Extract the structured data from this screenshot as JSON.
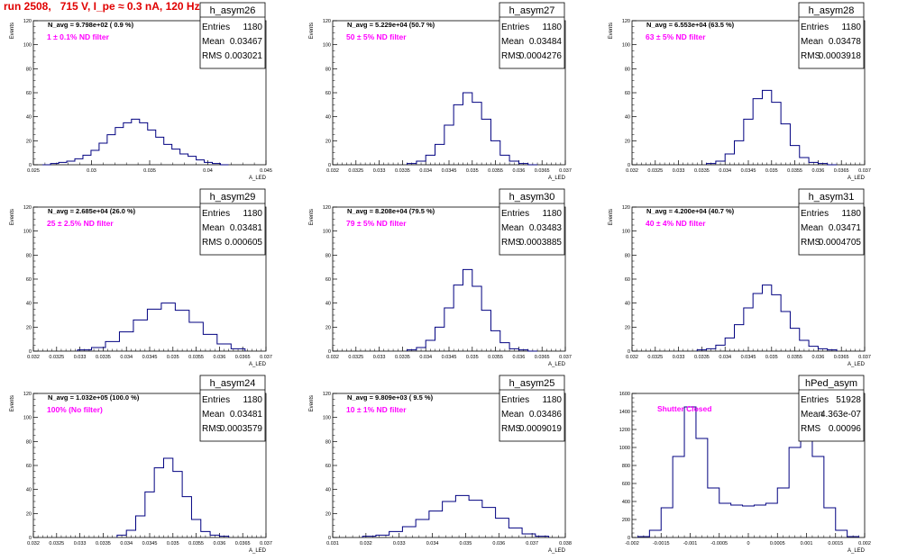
{
  "header": {
    "title": "run 2508,   715 V, I_pe ≈ 0.3 nA, 120 Hz"
  },
  "stat_labels": {
    "entries": "Entries",
    "mean": "Mean",
    "rms": "RMS"
  },
  "chart_data": [
    {
      "type": "bar",
      "name": "h_asym26",
      "xlabel": "A_LED",
      "ylabel": "Events",
      "navg": "N_avg = 9.798e+02 ( 0.9 %)",
      "filter": "1 ± 0.1% ND filter",
      "entries": "1180",
      "mean": "0.03467",
      "rms": "0.003021",
      "xlim": [
        0.024,
        0.047
      ],
      "ylim": [
        0,
        120
      ],
      "xticks": [
        "0.025",
        "0.03",
        "0.035",
        "0.04",
        "0.045"
      ],
      "yticks": [
        "0",
        "20",
        "40",
        "60",
        "80",
        "100",
        "120"
      ],
      "x": [
        0.0253,
        0.0261,
        0.0269,
        0.0277,
        0.0285,
        0.0293,
        0.0301,
        0.0309,
        0.0317,
        0.0325,
        0.0333,
        0.0341,
        0.0349,
        0.0357,
        0.0365,
        0.0373,
        0.0381,
        0.0389,
        0.0397,
        0.0405,
        0.0413,
        0.0421,
        0.0429
      ],
      "values": [
        0,
        1,
        2,
        3,
        5,
        8,
        12,
        18,
        25,
        31,
        35,
        38,
        35,
        29,
        23,
        17,
        13,
        9,
        7,
        4,
        2,
        1,
        0
      ]
    },
    {
      "type": "bar",
      "name": "h_asym27",
      "xlabel": "A_LED",
      "ylabel": "Events",
      "navg": "N_avg = 5.229e+04 (50.7 %)",
      "filter": "50 ± 5% ND filter",
      "entries": "1180",
      "mean": "0.03484",
      "rms": "0.0004276",
      "xlim": [
        0.032,
        0.037
      ],
      "ylim": [
        0,
        120
      ],
      "xticks": [
        "0.032",
        "0.0325",
        "0.033",
        "0.0335",
        "0.034",
        "0.0345",
        "0.035",
        "0.0355",
        "0.036",
        "0.0365",
        "0.037"
      ],
      "yticks": [
        "0",
        "20",
        "40",
        "60",
        "80",
        "100",
        "120"
      ],
      "x": [
        0.0337,
        0.0339,
        0.0341,
        0.0343,
        0.0345,
        0.0347,
        0.0349,
        0.0351,
        0.0353,
        0.0355,
        0.0357,
        0.0359,
        0.0361,
        0.0363
      ],
      "values": [
        1,
        3,
        8,
        17,
        33,
        50,
        60,
        52,
        38,
        20,
        8,
        3,
        1,
        0
      ]
    },
    {
      "type": "bar",
      "name": "h_asym28",
      "xlabel": "A_LED",
      "ylabel": "Events",
      "navg": "N_avg = 6.553e+04 (63.5 %)",
      "filter": "63 ± 5% ND filter",
      "entries": "1180",
      "mean": "0.03478",
      "rms": "0.0003918",
      "xlim": [
        0.032,
        0.037
      ],
      "ylim": [
        0,
        120
      ],
      "xticks": [
        "0.032",
        "0.0325",
        "0.033",
        "0.0335",
        "0.034",
        "0.0345",
        "0.035",
        "0.0355",
        "0.036",
        "0.0365",
        "0.037"
      ],
      "yticks": [
        "0",
        "20",
        "40",
        "60",
        "80",
        "100",
        "120"
      ],
      "x": [
        0.0337,
        0.0339,
        0.0341,
        0.0343,
        0.0345,
        0.0347,
        0.0349,
        0.0351,
        0.0353,
        0.0355,
        0.0357,
        0.0359,
        0.0361,
        0.0363
      ],
      "values": [
        1,
        3,
        9,
        20,
        38,
        55,
        62,
        52,
        34,
        16,
        6,
        2,
        1,
        0
      ]
    },
    {
      "type": "bar",
      "name": "h_asym29",
      "xlabel": "A_LED",
      "ylabel": "Events",
      "navg": "N_avg = 2.685e+04 (26.0 %)",
      "filter": "25 ± 2.5% ND filter",
      "entries": "1180",
      "mean": "0.03481",
      "rms": "0.000605",
      "xlim": [
        0.032,
        0.037
      ],
      "ylim": [
        0,
        120
      ],
      "xticks": [
        "0.032",
        "0.0325",
        "0.033",
        "0.0335",
        "0.034",
        "0.0345",
        "0.035",
        "0.0355",
        "0.036",
        "0.0365",
        "0.037"
      ],
      "yticks": [
        "0",
        "20",
        "40",
        "60",
        "80",
        "100",
        "120"
      ],
      "x": [
        0.0331,
        0.0334,
        0.0337,
        0.034,
        0.0343,
        0.0346,
        0.0349,
        0.0352,
        0.0355,
        0.0358,
        0.0361,
        0.0364
      ],
      "values": [
        1,
        3,
        8,
        16,
        26,
        35,
        40,
        34,
        24,
        14,
        6,
        2
      ]
    },
    {
      "type": "bar",
      "name": "h_asym30",
      "xlabel": "A_LED",
      "ylabel": "Events",
      "navg": "N_avg = 8.208e+04 (79.5 %)",
      "filter": "79 ± 5% ND filter",
      "entries": "1180",
      "mean": "0.03483",
      "rms": "0.0003885",
      "xlim": [
        0.032,
        0.037
      ],
      "ylim": [
        0,
        120
      ],
      "xticks": [
        "0.032",
        "0.0325",
        "0.033",
        "0.0335",
        "0.034",
        "0.0345",
        "0.035",
        "0.0355",
        "0.036",
        "0.0365",
        "0.037"
      ],
      "yticks": [
        "0",
        "20",
        "40",
        "60",
        "80",
        "100",
        "120"
      ],
      "x": [
        0.0337,
        0.0339,
        0.0341,
        0.0343,
        0.0345,
        0.0347,
        0.0349,
        0.0351,
        0.0353,
        0.0355,
        0.0357,
        0.0359,
        0.0361,
        0.0363
      ],
      "values": [
        1,
        3,
        9,
        20,
        36,
        55,
        68,
        54,
        34,
        17,
        7,
        2,
        1,
        0
      ]
    },
    {
      "type": "bar",
      "name": "h_asym31",
      "xlabel": "A_LED",
      "ylabel": "Events",
      "navg": "N_avg = 4.200e+04 (40.7 %)",
      "filter": "40 ± 4% ND filter",
      "entries": "1180",
      "mean": "0.03471",
      "rms": "0.0004705",
      "xlim": [
        0.032,
        0.037
      ],
      "ylim": [
        0,
        120
      ],
      "xticks": [
        "0.032",
        "0.0325",
        "0.033",
        "0.0335",
        "0.034",
        "0.0345",
        "0.035",
        "0.0355",
        "0.036",
        "0.0365",
        "0.037"
      ],
      "yticks": [
        "0",
        "20",
        "40",
        "60",
        "80",
        "100",
        "120"
      ],
      "x": [
        0.0335,
        0.0337,
        0.0339,
        0.0341,
        0.0343,
        0.0345,
        0.0347,
        0.0349,
        0.0351,
        0.0353,
        0.0355,
        0.0357,
        0.0359,
        0.0361,
        0.0363
      ],
      "values": [
        1,
        2,
        5,
        11,
        22,
        36,
        48,
        55,
        47,
        33,
        19,
        9,
        4,
        2,
        1
      ]
    },
    {
      "type": "bar",
      "name": "h_asym24",
      "xlabel": "A_LED",
      "ylabel": "Events",
      "navg": "N_avg = 1.032e+05 (100.0 %)",
      "filter": "100% (No filter)",
      "entries": "1180",
      "mean": "0.03481",
      "rms": "0.0003579",
      "xlim": [
        0.032,
        0.037
      ],
      "ylim": [
        0,
        120
      ],
      "xticks": [
        "0.032",
        "0.0325",
        "0.033",
        "0.0335",
        "0.034",
        "0.0345",
        "0.035",
        "0.0355",
        "0.036",
        "0.0365",
        "0.037"
      ],
      "yticks": [
        "0",
        "20",
        "40",
        "60",
        "80",
        "100",
        "120"
      ],
      "x": [
        0.0339,
        0.0341,
        0.0343,
        0.0345,
        0.0347,
        0.0349,
        0.0351,
        0.0353,
        0.0355,
        0.0357,
        0.0359,
        0.0361
      ],
      "values": [
        2,
        6,
        18,
        38,
        58,
        66,
        55,
        34,
        15,
        5,
        2,
        1
      ]
    },
    {
      "type": "bar",
      "name": "h_asym25",
      "xlabel": "A_LED",
      "ylabel": "Events",
      "navg": "N_avg = 9.809e+03 ( 9.5 %)",
      "filter": "10 ± 1% ND filter",
      "entries": "1180",
      "mean": "0.03486",
      "rms": "0.0009019",
      "xlim": [
        0.031,
        0.038
      ],
      "ylim": [
        0,
        120
      ],
      "xticks": [
        "0.031",
        "0.032",
        "0.033",
        "0.034",
        "0.035",
        "0.036",
        "0.037",
        "0.038"
      ],
      "yticks": [
        "0",
        "20",
        "40",
        "60",
        "80",
        "100",
        "120"
      ],
      "x": [
        0.0321,
        0.0325,
        0.0329,
        0.0333,
        0.0337,
        0.0341,
        0.0345,
        0.0349,
        0.0353,
        0.0357,
        0.0361,
        0.0365,
        0.0369,
        0.0373
      ],
      "values": [
        1,
        2,
        5,
        9,
        15,
        22,
        30,
        35,
        31,
        25,
        16,
        8,
        3,
        1
      ]
    },
    {
      "type": "bar",
      "name": "hPed_asym",
      "xlabel": "A_LED",
      "ylabel": "",
      "navg": "",
      "filter": "Shutter Closed",
      "entries": "51928",
      "mean": "4.363e-07",
      "rms": "0.00096",
      "xlim": [
        -0.002,
        0.002
      ],
      "ylim": [
        0,
        1600
      ],
      "xticks": [
        "-0.002",
        "-0.0015",
        "-0.001",
        "-0.0005",
        "0",
        "0.0005",
        "0.001",
        "0.0015",
        "0.002"
      ],
      "yticks": [
        "0",
        "200",
        "400",
        "600",
        "800",
        "1000",
        "1200",
        "1400",
        "1600"
      ],
      "x": [
        -0.0018,
        -0.0016,
        -0.0014,
        -0.0012,
        -0.001,
        -0.0008,
        -0.0006,
        -0.0004,
        -0.0002,
        0,
        0.0002,
        0.0004,
        0.0006,
        0.0008,
        0.001,
        0.0012,
        0.0014,
        0.0016,
        0.0018
      ],
      "values": [
        10,
        80,
        330,
        900,
        1450,
        1100,
        550,
        380,
        360,
        350,
        360,
        380,
        550,
        1000,
        1380,
        900,
        330,
        80,
        10
      ]
    }
  ]
}
